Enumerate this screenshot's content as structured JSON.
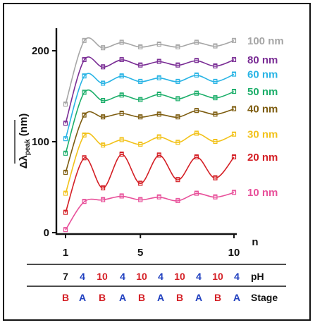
{
  "chart_data": {
    "type": "line",
    "xlabel": "n",
    "ylabel_main": "Δλ",
    "ylabel_sub": "peak",
    "ylabel_unit": " (nm)",
    "x": [
      1,
      2,
      3,
      4,
      5,
      6,
      7,
      8,
      9,
      10
    ],
    "xticks": [
      1,
      5,
      10
    ],
    "yticks": [
      0,
      100,
      200
    ],
    "xlim": [
      1,
      10
    ],
    "ylim": [
      0,
      215
    ],
    "series": [
      {
        "name": "10 nm",
        "color": "#e8509a",
        "values": [
          3,
          34,
          36,
          40,
          36,
          39,
          35,
          43,
          39,
          44
        ]
      },
      {
        "name": "20 nm",
        "color": "#d41f25",
        "values": [
          22,
          82,
          49,
          86,
          54,
          85,
          58,
          83,
          60,
          83
        ]
      },
      {
        "name": "30 nm",
        "color": "#f2c21b",
        "values": [
          43,
          107,
          96,
          102,
          97,
          105,
          99,
          109,
          100,
          108
        ]
      },
      {
        "name": "40 nm",
        "color": "#7d5c0f",
        "values": [
          66,
          129,
          127,
          131,
          127,
          130,
          127,
          134,
          130,
          136
        ]
      },
      {
        "name": "50 nm",
        "color": "#1cae6a",
        "values": [
          87,
          154,
          145,
          151,
          146,
          152,
          147,
          153,
          148,
          155
        ]
      },
      {
        "name": "60 nm",
        "color": "#29b4e5",
        "values": [
          103,
          172,
          164,
          172,
          166,
          170,
          166,
          173,
          166,
          174
        ]
      },
      {
        "name": "80 nm",
        "color": "#7a2d95",
        "values": [
          120,
          190,
          182,
          190,
          184,
          188,
          184,
          189,
          183,
          190
        ]
      },
      {
        "name": "100 nm",
        "color": "#a6a6a6",
        "values": [
          141,
          211,
          203,
          209,
          204,
          207,
          204,
          209,
          205,
          211
        ]
      }
    ]
  },
  "ph_row": {
    "label": "pH",
    "values": [
      "7",
      "4",
      "10",
      "4",
      "10",
      "4",
      "10",
      "4",
      "10",
      "4"
    ]
  },
  "stage_row": {
    "label": "Stage",
    "values": [
      "B",
      "A",
      "B",
      "A",
      "B",
      "A",
      "B",
      "A",
      "B",
      "A"
    ]
  },
  "colors": {
    "axis": "#111111",
    "ph_first": "#111111",
    "ph_acid": "#1f3fbf",
    "ph_base": "#d41f25",
    "stage_A": "#1f3fbf",
    "stage_B": "#d41f25"
  }
}
